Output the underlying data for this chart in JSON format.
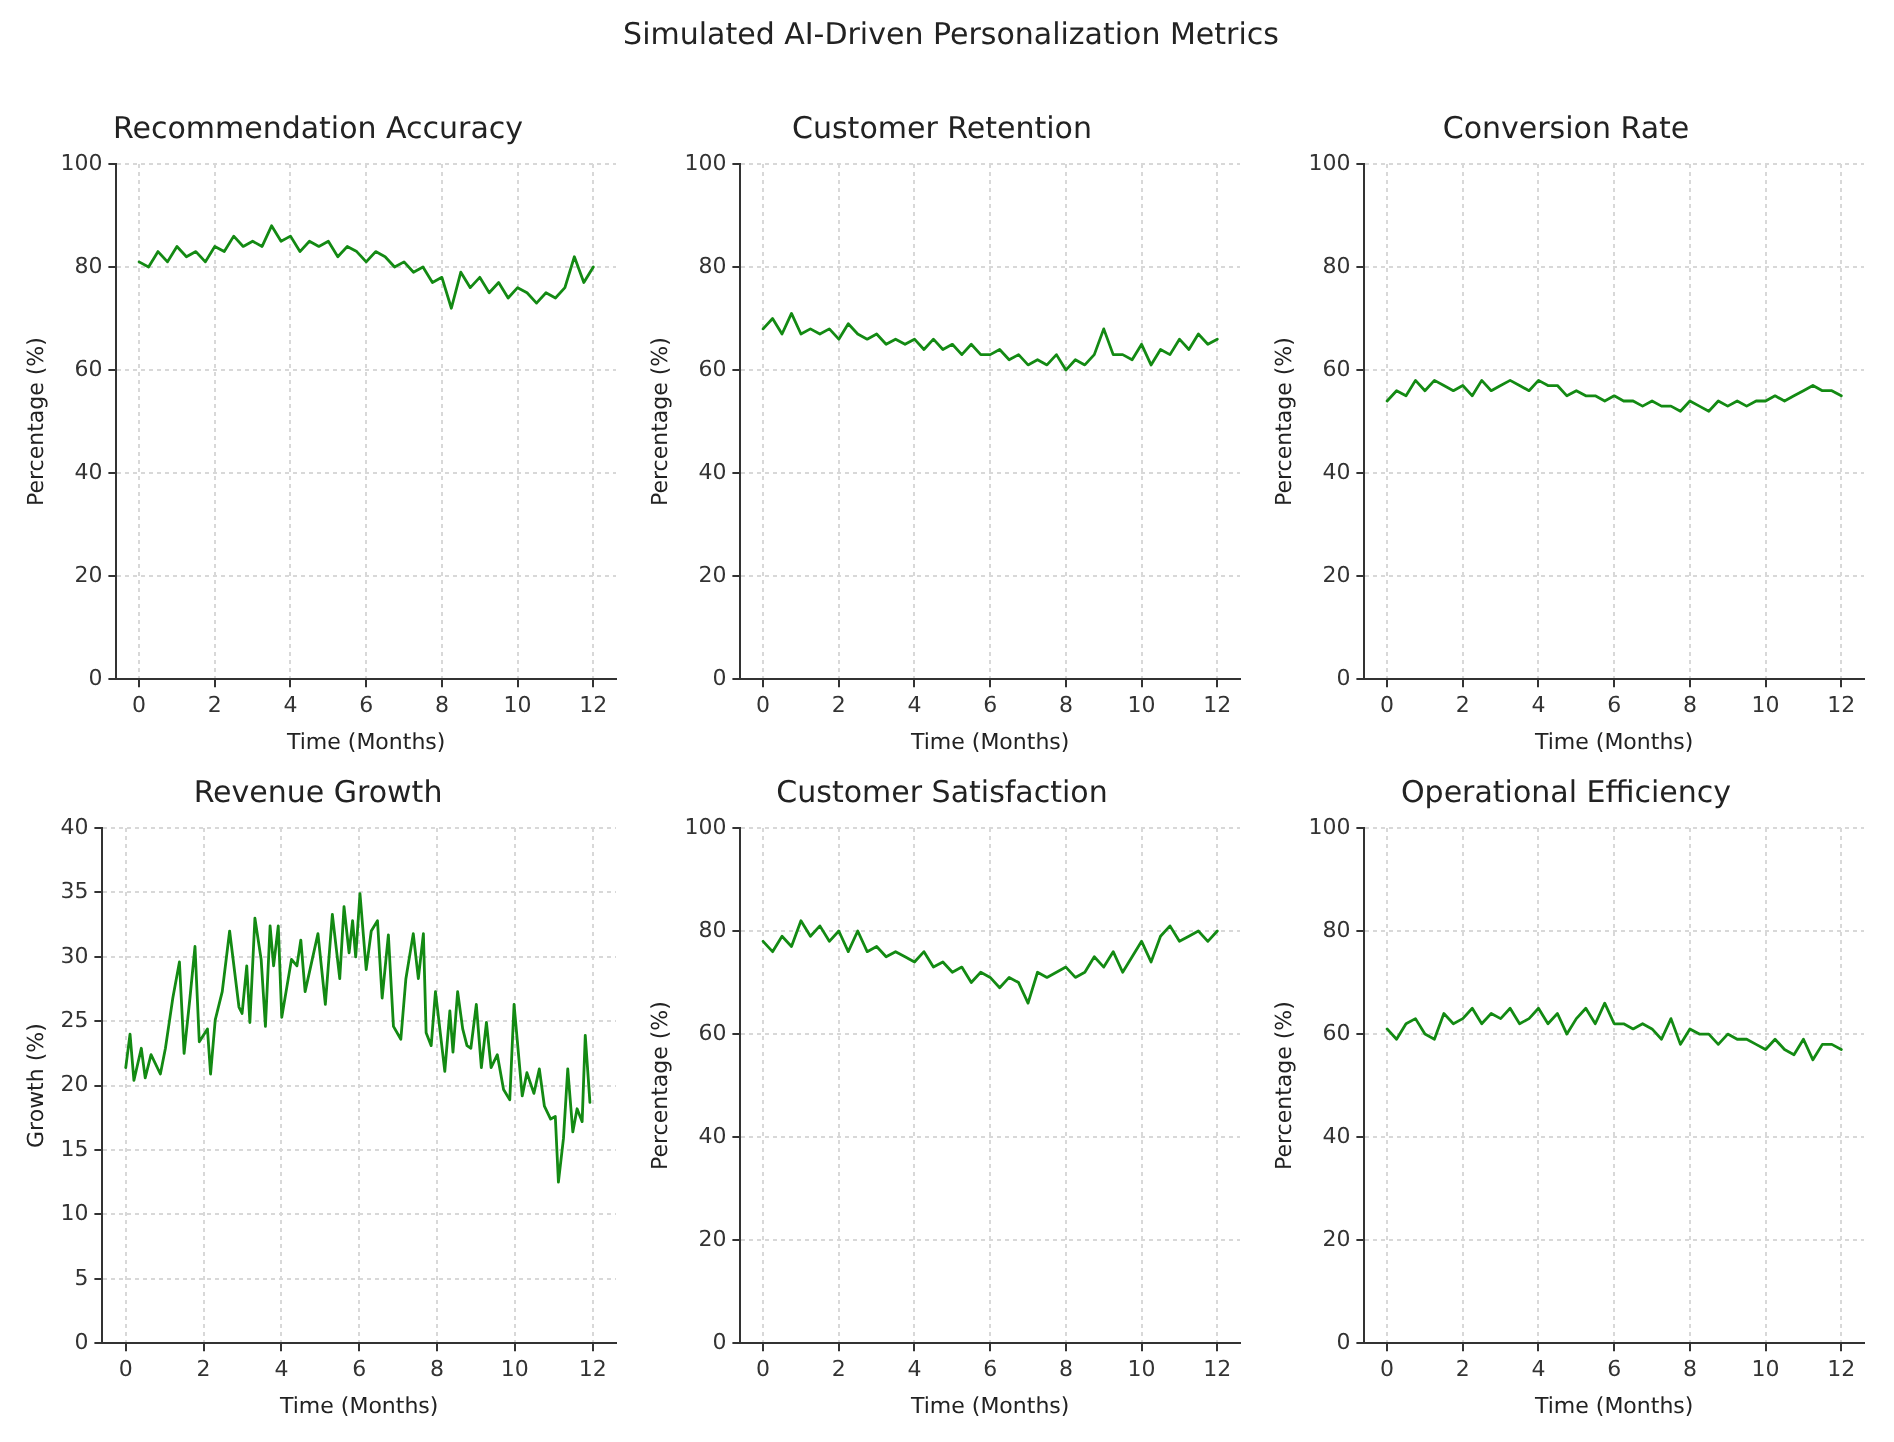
{
  "chart_data": [
    {
      "type": "line",
      "title": "Recommendation Accuracy",
      "annotations": [
        "Simulated AI-Driven Personalization Metrics"
      ],
      "xlabel": "Time (Months)",
      "ylabel": "Percentage (%)",
      "xlim": [
        -0.6,
        12.6
      ],
      "xticks": [
        0,
        2,
        4,
        6,
        8,
        10,
        12
      ],
      "ylim": [
        0,
        100
      ],
      "yticks": [
        0,
        20,
        40,
        60,
        80,
        100
      ],
      "grid": true,
      "legend": false,
      "marker": "none",
      "line_style": "solid",
      "x": [
        0,
        0.25,
        0.5,
        0.75,
        1,
        1.25,
        1.5,
        1.75,
        2,
        2.25,
        2.5,
        2.75,
        3,
        3.25,
        3.5,
        3.75,
        4,
        4.25,
        4.5,
        4.75,
        5,
        5.25,
        5.5,
        5.75,
        6,
        6.25,
        6.5,
        6.75,
        7,
        7.25,
        7.5,
        7.75,
        8,
        8.25,
        8.5,
        8.75,
        9,
        9.25,
        9.5,
        9.75,
        10,
        10.25,
        10.5,
        10.75,
        11,
        11.25,
        11.5,
        11.75,
        12
      ],
      "series": [
        {
          "color": "#138a13",
          "values": [
            81,
            80,
            83,
            81,
            84,
            82,
            83,
            81,
            84,
            83,
            86,
            84,
            85,
            84,
            88,
            85,
            86,
            83,
            85,
            84,
            85,
            82,
            84,
            83,
            81,
            83,
            82,
            80,
            81,
            79,
            80,
            77,
            78,
            72,
            79,
            76,
            78,
            75,
            77,
            74,
            76,
            75,
            73,
            75,
            74,
            76,
            82,
            77,
            80
          ]
        }
      ]
    },
    {
      "type": "line",
      "title": "Customer Retention",
      "xlabel": "Time (Months)",
      "ylabel": "Percentage (%)",
      "xlim": [
        -0.6,
        12.6
      ],
      "xticks": [
        0,
        2,
        4,
        6,
        8,
        10,
        12
      ],
      "ylim": [
        0,
        100
      ],
      "yticks": [
        0,
        20,
        40,
        60,
        80,
        100
      ],
      "grid": true,
      "legend": false,
      "marker": "none",
      "line_style": "solid",
      "x": [
        0,
        0.25,
        0.5,
        0.75,
        1,
        1.25,
        1.5,
        1.75,
        2,
        2.25,
        2.5,
        2.75,
        3,
        3.25,
        3.5,
        3.75,
        4,
        4.25,
        4.5,
        4.75,
        5,
        5.25,
        5.5,
        5.75,
        6,
        6.25,
        6.5,
        6.75,
        7,
        7.25,
        7.5,
        7.75,
        8,
        8.25,
        8.5,
        8.75,
        9,
        9.25,
        9.5,
        9.75,
        10,
        10.25,
        10.5,
        10.75,
        11,
        11.25,
        11.5,
        11.75,
        12
      ],
      "series": [
        {
          "color": "#138a13",
          "values": [
            68,
            70,
            67,
            71,
            67,
            68,
            67,
            68,
            66,
            69,
            67,
            66,
            67,
            65,
            66,
            65,
            66,
            64,
            66,
            64,
            65,
            63,
            65,
            63,
            63,
            64,
            62,
            63,
            61,
            62,
            61,
            63,
            60,
            62,
            61,
            63,
            68,
            63,
            63,
            62,
            65,
            61,
            64,
            63,
            66,
            64,
            67,
            65,
            66
          ]
        }
      ]
    },
    {
      "type": "line",
      "title": "Conversion Rate",
      "xlabel": "Time (Months)",
      "ylabel": "Percentage (%)",
      "xlim": [
        -0.6,
        12.6
      ],
      "xticks": [
        0,
        2,
        4,
        6,
        8,
        10,
        12
      ],
      "ylim": [
        0,
        100
      ],
      "yticks": [
        0,
        20,
        40,
        60,
        80,
        100
      ],
      "grid": true,
      "legend": false,
      "marker": "none",
      "line_style": "solid",
      "x": [
        0,
        0.25,
        0.5,
        0.75,
        1,
        1.25,
        1.5,
        1.75,
        2,
        2.25,
        2.5,
        2.75,
        3,
        3.25,
        3.5,
        3.75,
        4,
        4.25,
        4.5,
        4.75,
        5,
        5.25,
        5.5,
        5.75,
        6,
        6.25,
        6.5,
        6.75,
        7,
        7.25,
        7.5,
        7.75,
        8,
        8.25,
        8.5,
        8.75,
        9,
        9.25,
        9.5,
        9.75,
        10,
        10.25,
        10.5,
        10.75,
        11,
        11.25,
        11.5,
        11.75,
        12
      ],
      "series": [
        {
          "color": "#138a13",
          "values": [
            54,
            56,
            55,
            58,
            56,
            58,
            57,
            56,
            57,
            55,
            58,
            56,
            57,
            58,
            57,
            56,
            58,
            57,
            57,
            55,
            56,
            55,
            55,
            54,
            55,
            54,
            54,
            53,
            54,
            53,
            53,
            52,
            54,
            53,
            52,
            54,
            53,
            54,
            53,
            54,
            54,
            55,
            54,
            55,
            56,
            57,
            56,
            56,
            55
          ]
        }
      ]
    },
    {
      "type": "line",
      "title": "Revenue Growth",
      "xlabel": "Time (Months)",
      "ylabel": "Growth (%)",
      "xlim": [
        -0.6,
        12.6
      ],
      "xticks": [
        0,
        2,
        4,
        6,
        8,
        10,
        12
      ],
      "ylim": [
        0,
        40
      ],
      "yticks": [
        0,
        5,
        10,
        15,
        20,
        25,
        30,
        35,
        40
      ],
      "grid": true,
      "legend": false,
      "marker": "none",
      "line_style": "solid",
      "x": [
        0,
        0.11,
        0.21,
        0.4,
        0.5,
        0.65,
        0.89,
        1.02,
        1.21,
        1.38,
        1.5,
        1.65,
        1.78,
        1.89,
        2.1,
        2.18,
        2.3,
        2.48,
        2.67,
        2.91,
        2.99,
        3.11,
        3.19,
        3.32,
        3.48,
        3.59,
        3.71,
        3.8,
        3.92,
        4.01,
        4.26,
        4.4,
        4.5,
        4.61,
        4.94,
        5.13,
        5.31,
        5.5,
        5.61,
        5.74,
        5.83,
        5.91,
        6.02,
        6.18,
        6.31,
        6.47,
        6.59,
        6.75,
        6.88,
        7.07,
        7.2,
        7.39,
        7.52,
        7.65,
        7.72,
        7.85,
        7.96,
        8.2,
        8.33,
        8.41,
        8.53,
        8.66,
        8.77,
        8.87,
        9.01,
        9.14,
        9.27,
        9.39,
        9.55,
        9.71,
        9.87,
        9.98,
        10.19,
        10.31,
        10.49,
        10.63,
        10.76,
        10.92,
        11.04,
        11.12,
        11.25,
        11.36,
        11.49,
        11.6,
        11.73,
        11.81,
        11.93
      ],
      "series": [
        {
          "color": "#138a13",
          "values": [
            21.4,
            24,
            20.4,
            22.9,
            20.6,
            22.4,
            20.9,
            22.9,
            26.8,
            29.6,
            22.5,
            26.8,
            30.8,
            23.4,
            24.4,
            20.9,
            25.1,
            27.3,
            32,
            26.1,
            25.6,
            29.3,
            24.9,
            33,
            29.8,
            24.6,
            32.4,
            29.3,
            32.4,
            25.3,
            29.8,
            29.3,
            31.3,
            27.3,
            31.8,
            26.3,
            33.3,
            28.3,
            33.9,
            30.3,
            32.8,
            30,
            34.9,
            29,
            32,
            32.8,
            26.8,
            31.7,
            24.6,
            23.6,
            28.3,
            31.8,
            28.3,
            31.8,
            24.1,
            23.1,
            27.3,
            21.1,
            25.8,
            22.6,
            27.3,
            24.4,
            23.1,
            22.9,
            26.3,
            21.4,
            24.9,
            21.4,
            22.4,
            19.7,
            18.9,
            26.3,
            19.2,
            21,
            19.4,
            21.3,
            18.4,
            17.4,
            17.6,
            12.5,
            15.9,
            21.3,
            16.4,
            18.2,
            17.2,
            23.9,
            18.7
          ]
        }
      ]
    },
    {
      "type": "line",
      "title": "Customer Satisfaction",
      "xlabel": "Time (Months)",
      "ylabel": "Percentage (%)",
      "xlim": [
        -0.6,
        12.6
      ],
      "xticks": [
        0,
        2,
        4,
        6,
        8,
        10,
        12
      ],
      "ylim": [
        0,
        100
      ],
      "yticks": [
        0,
        20,
        40,
        60,
        80,
        100
      ],
      "grid": true,
      "legend": false,
      "marker": "none",
      "line_style": "solid",
      "x": [
        0,
        0.25,
        0.5,
        0.75,
        1,
        1.25,
        1.5,
        1.75,
        2,
        2.25,
        2.5,
        2.75,
        3,
        3.25,
        3.5,
        3.75,
        4,
        4.25,
        4.5,
        4.75,
        5,
        5.25,
        5.5,
        5.75,
        6,
        6.25,
        6.5,
        6.75,
        7,
        7.25,
        7.5,
        7.75,
        8,
        8.25,
        8.5,
        8.75,
        9,
        9.25,
        9.5,
        9.75,
        10,
        10.25,
        10.5,
        10.75,
        11,
        11.25,
        11.5,
        11.75,
        12
      ],
      "series": [
        {
          "color": "#138a13",
          "values": [
            78,
            76,
            79,
            77,
            82,
            79,
            81,
            78,
            80,
            76,
            80,
            76,
            77,
            75,
            76,
            75,
            74,
            76,
            73,
            74,
            72,
            73,
            70,
            72,
            71,
            69,
            71,
            70,
            66,
            72,
            71,
            72,
            73,
            71,
            72,
            75,
            73,
            76,
            72,
            75,
            78,
            74,
            79,
            81,
            78,
            79,
            80,
            78,
            80
          ]
        }
      ]
    },
    {
      "type": "line",
      "title": "Operational Efficiency",
      "xlabel": "Time (Months)",
      "ylabel": "Percentage (%)",
      "xlim": [
        -0.6,
        12.6
      ],
      "xticks": [
        0,
        2,
        4,
        6,
        8,
        10,
        12
      ],
      "ylim": [
        0,
        100
      ],
      "yticks": [
        0,
        20,
        40,
        60,
        80,
        100
      ],
      "grid": true,
      "legend": false,
      "marker": "none",
      "line_style": "solid",
      "x": [
        0,
        0.25,
        0.5,
        0.75,
        1,
        1.25,
        1.5,
        1.75,
        2,
        2.25,
        2.5,
        2.75,
        3,
        3.25,
        3.5,
        3.75,
        4,
        4.25,
        4.5,
        4.75,
        5,
        5.25,
        5.5,
        5.75,
        6,
        6.25,
        6.5,
        6.75,
        7,
        7.25,
        7.5,
        7.75,
        8,
        8.25,
        8.5,
        8.75,
        9,
        9.25,
        9.5,
        9.75,
        10,
        10.25,
        10.5,
        10.75,
        11,
        11.25,
        11.5,
        11.75,
        12
      ],
      "series": [
        {
          "color": "#138a13",
          "values": [
            61,
            59,
            62,
            63,
            60,
            59,
            64,
            62,
            63,
            65,
            62,
            64,
            63,
            65,
            62,
            63,
            65,
            62,
            64,
            60,
            63,
            65,
            62,
            66,
            62,
            62,
            61,
            62,
            61,
            59,
            63,
            58,
            61,
            60,
            60,
            58,
            60,
            59,
            59,
            58,
            57,
            59,
            57,
            56,
            59,
            55,
            58,
            58,
            57
          ]
        }
      ]
    }
  ]
}
